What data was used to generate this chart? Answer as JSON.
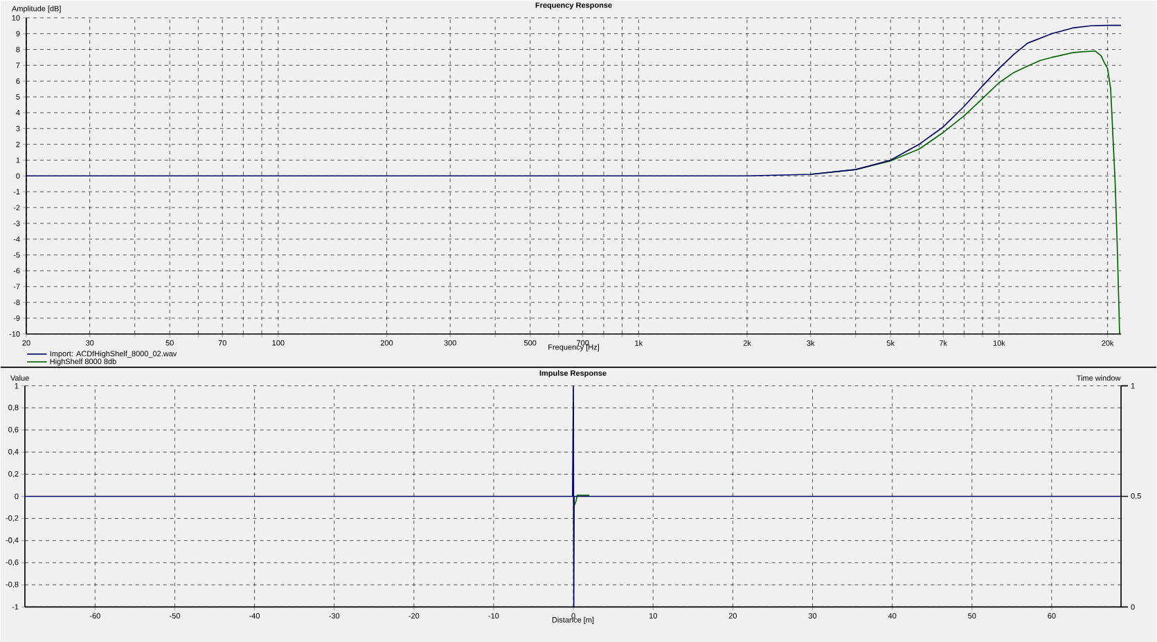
{
  "chart_data": [
    {
      "type": "line",
      "title": "Frequency Response",
      "xlabel": "Frequency [Hz]",
      "ylabel": "Amplitude [dB]",
      "log": "x",
      "grid": true,
      "legend": "bottom left",
      "xlim": [
        20,
        21800
      ],
      "ylim": [
        -10,
        10
      ],
      "xticks": [
        20,
        30,
        {
          "value": 40,
          "label": null
        },
        50,
        {
          "value": 60,
          "label": null
        },
        70,
        {
          "value": 80,
          "label": null
        },
        {
          "value": 90,
          "label": null
        },
        100,
        200,
        300,
        {
          "value": 400,
          "label": null
        },
        500,
        {
          "value": 600,
          "label": null
        },
        700,
        {
          "value": 800,
          "label": null
        },
        {
          "value": 900,
          "label": null
        },
        {
          "value": 1000,
          "label": "1k"
        },
        {
          "value": 2000,
          "label": "2k"
        },
        {
          "value": 3000,
          "label": "3k"
        },
        {
          "value": 4000,
          "label": null
        },
        {
          "value": 5000,
          "label": "5k"
        },
        {
          "value": 6000,
          "label": null
        },
        {
          "value": 7000,
          "label": "7k"
        },
        {
          "value": 8000,
          "label": null
        },
        {
          "value": 9000,
          "label": null
        },
        {
          "value": 10000,
          "label": "10k"
        },
        {
          "value": 20000,
          "label": "20k"
        }
      ],
      "yticks": [
        -10,
        -9,
        -8,
        -7,
        -6,
        -5,
        -4,
        -3,
        -2,
        -1,
        0,
        1,
        2,
        3,
        4,
        5,
        6,
        7,
        8,
        9,
        10
      ],
      "series": [
        {
          "name": "Import: ACDfHighShelf_8000_02.wav",
          "color": "#000066",
          "x": [
            20,
            1000,
            2000,
            3000,
            4000,
            5000,
            6000,
            7000,
            8000,
            9000,
            10000,
            11000,
            12000,
            14000,
            16000,
            18000,
            20000,
            21800
          ],
          "values": [
            0,
            0,
            0,
            0.1,
            0.4,
            1.0,
            2.0,
            3.1,
            4.4,
            5.7,
            6.8,
            7.7,
            8.4,
            9.0,
            9.36,
            9.5,
            9.53,
            9.53
          ]
        },
        {
          "name": "HighShelf 8000 8db",
          "color": "#006600",
          "x": [
            3000,
            4000,
            5000,
            6000,
            7000,
            8000,
            9000,
            10000,
            11000,
            12000,
            13000,
            14000,
            16000,
            17000,
            18500,
            19200,
            19600,
            20000,
            20400,
            21000,
            21300,
            21600
          ],
          "values": [
            0.1,
            0.4,
            0.95,
            1.7,
            2.75,
            3.8,
            4.9,
            5.9,
            6.55,
            6.95,
            7.3,
            7.5,
            7.8,
            7.85,
            7.9,
            7.6,
            7.15,
            6.8,
            5.5,
            -0.5,
            -4.8,
            -10
          ]
        }
      ]
    },
    {
      "type": "line",
      "title": "Impulse Response",
      "xlabel": "Distance [m]",
      "ylabel": "Value",
      "y2label": "Time window",
      "grid": true,
      "xlim": [
        -68.8,
        68.7
      ],
      "ylim": [
        -1,
        1
      ],
      "y2lim": [
        0,
        1
      ],
      "xticks": [
        -60,
        -50,
        -40,
        -30,
        -20,
        -10,
        0,
        10,
        20,
        30,
        40,
        50,
        60
      ],
      "yticks": [
        -1,
        {
          "value": -0.8,
          "label": "-0,8"
        },
        {
          "value": -0.6,
          "label": "-0,6"
        },
        {
          "value": -0.4,
          "label": "-0,4"
        },
        {
          "value": -0.2,
          "label": "-0,2"
        },
        0,
        {
          "value": 0.2,
          "label": "0,2"
        },
        {
          "value": 0.4,
          "label": "0,4"
        },
        {
          "value": 0.6,
          "label": "0,6"
        },
        {
          "value": 0.8,
          "label": "0,8"
        },
        1
      ],
      "y2ticks": [
        0,
        {
          "value": 0.5,
          "label": "0,5"
        },
        1
      ],
      "series": [
        {
          "color": "#000066",
          "x": [
            -68.8,
            -0.1,
            0,
            0.05,
            0.1,
            68.7
          ],
          "values": [
            0,
            0,
            1,
            -1,
            0,
            0
          ]
        },
        {
          "color": "#006600",
          "x": [
            0.02,
            0.3,
            0.5,
            2
          ],
          "values": [
            -0.1,
            -0.05,
            0.01,
            0.01
          ]
        }
      ]
    }
  ]
}
